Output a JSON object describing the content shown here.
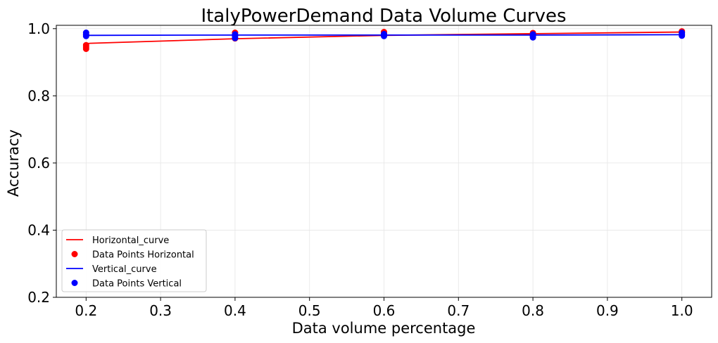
{
  "chart_data": {
    "type": "line",
    "title": "ItalyPowerDemand Data Volume Curves",
    "xlabel": "Data volume percentage",
    "ylabel": "Accuracy",
    "xlim": [
      0.16,
      1.04
    ],
    "ylim": [
      0.2,
      1.01
    ],
    "xticks": [
      0.2,
      0.3,
      0.4,
      0.5,
      0.6,
      0.7,
      0.8,
      0.9,
      1.0
    ],
    "xtick_labels": [
      "0.2",
      "0.3",
      "0.4",
      "0.5",
      "0.6",
      "0.7",
      "0.8",
      "0.9",
      "1.0"
    ],
    "yticks": [
      0.2,
      0.4,
      0.6,
      0.8,
      1.0
    ],
    "ytick_labels": [
      "0.2",
      "0.4",
      "0.6",
      "0.8",
      "1.0"
    ],
    "grid": true,
    "legend_position": "lower-left",
    "legend": [
      "Horizontal_curve",
      "Data Points Horizontal",
      "Vertical_curve",
      "Data Points Vertical"
    ],
    "series": [
      {
        "name": "Horizontal_curve",
        "kind": "line",
        "color": "#ff0000",
        "x": [
          0.2,
          0.4,
          0.6,
          0.8,
          1.0
        ],
        "y": [
          0.956,
          0.97,
          0.98,
          0.985,
          0.99
        ]
      },
      {
        "name": "Data Points Horizontal",
        "kind": "scatter",
        "color": "#ff0000",
        "x": [
          0.2,
          0.2,
          0.2,
          0.2,
          0.4,
          0.4,
          0.4,
          0.6,
          0.6,
          0.6,
          0.8,
          0.8,
          0.8,
          1.0,
          1.0,
          1.0
        ],
        "y": [
          0.94,
          0.945,
          0.951,
          0.982,
          0.971,
          0.98,
          0.988,
          0.98,
          0.985,
          0.99,
          0.978,
          0.983,
          0.987,
          0.983,
          0.988,
          0.992
        ]
      },
      {
        "name": "Vertical_curve",
        "kind": "line",
        "color": "#0000ff",
        "x": [
          0.2,
          0.4,
          0.6,
          0.8,
          1.0
        ],
        "y": [
          0.98,
          0.981,
          0.981,
          0.981,
          0.982
        ]
      },
      {
        "name": "Data Points Vertical",
        "kind": "scatter",
        "color": "#0000ff",
        "x": [
          0.2,
          0.2,
          0.2,
          0.4,
          0.4,
          0.4,
          0.6,
          0.6,
          0.6,
          0.8,
          0.8,
          0.8,
          1.0,
          1.0,
          1.0
        ],
        "y": [
          0.978,
          0.983,
          0.988,
          0.972,
          0.978,
          0.983,
          0.978,
          0.981,
          0.984,
          0.974,
          0.979,
          0.983,
          0.979,
          0.983,
          0.988
        ]
      }
    ]
  }
}
